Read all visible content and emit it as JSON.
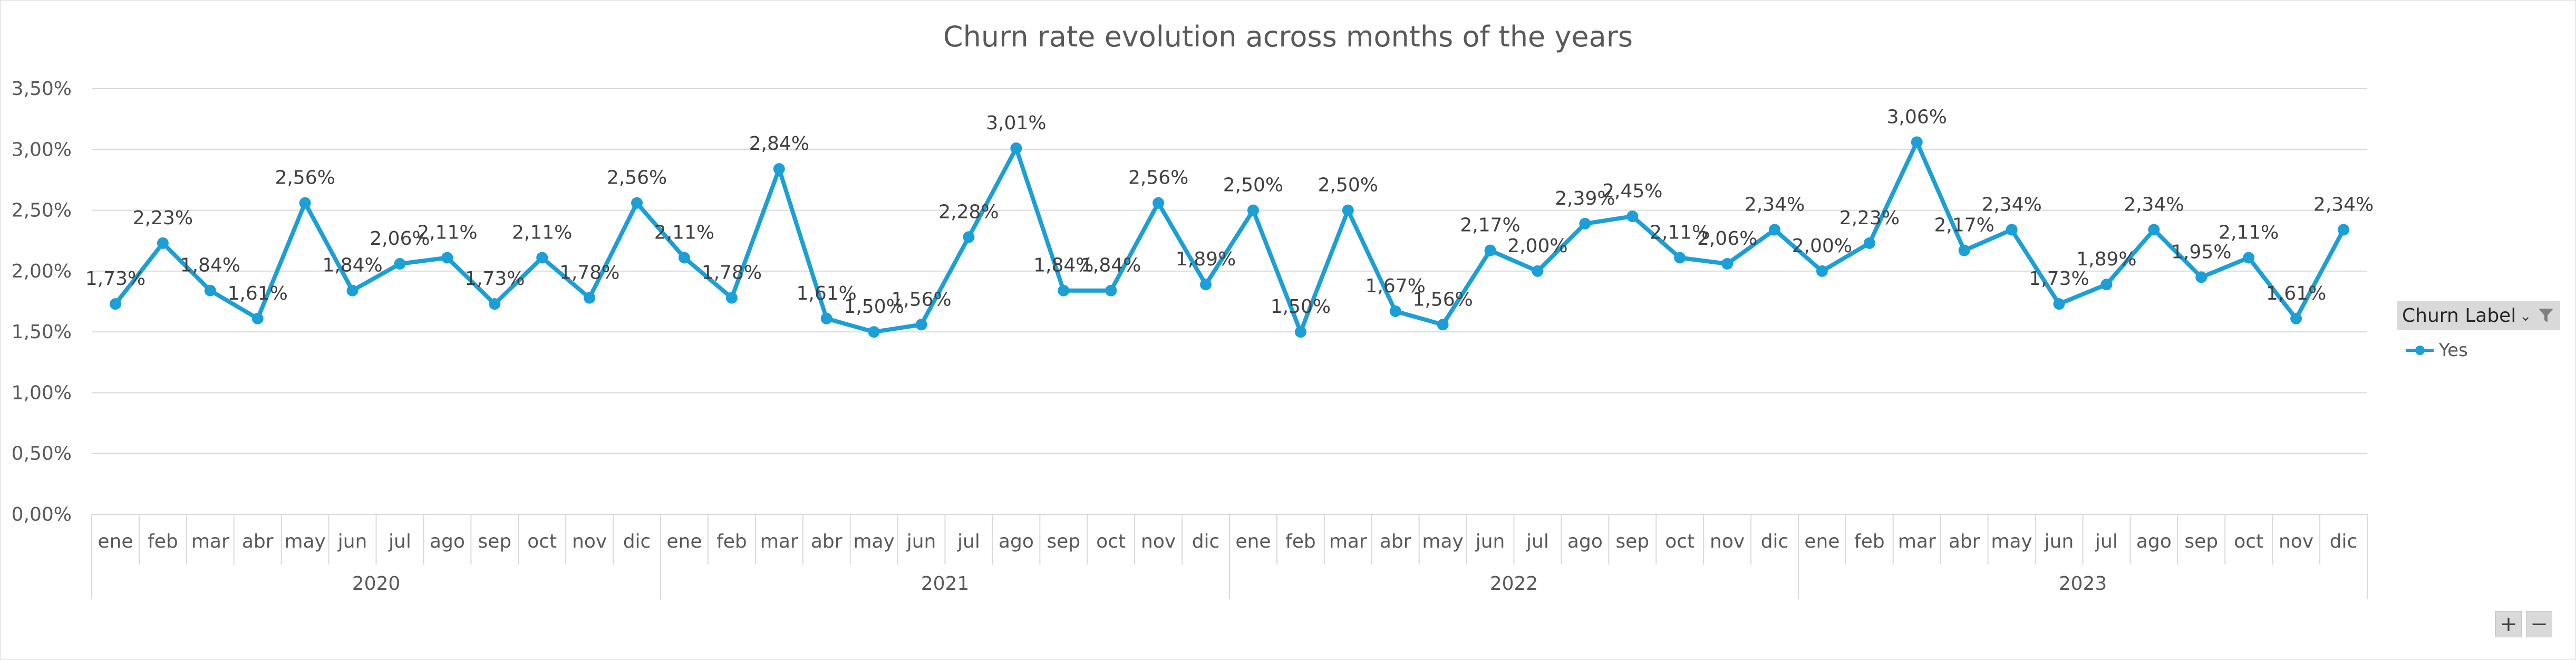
{
  "colors": {
    "series": "#1b9fd6",
    "grid": "#d9d9d9",
    "text": "#595959"
  },
  "legend": {
    "title": "Churn Label",
    "entry": "Yes",
    "sort_icon": "sort-dropdown-icon",
    "filter_icon": "filter-icon"
  },
  "zoom": {
    "plus": "+",
    "minus": "−"
  },
  "chart_data": {
    "type": "line",
    "title": "Churn rate evolution across months of the years",
    "xlabel": "",
    "ylabel": "",
    "ylim": [
      0,
      0.035
    ],
    "y_ticks": [
      "0,00%",
      "0,50%",
      "1,00%",
      "1,50%",
      "2,00%",
      "2,50%",
      "3,00%",
      "3,50%"
    ],
    "grid": true,
    "legend_position": "right",
    "years": [
      "2020",
      "2021",
      "2022",
      "2023"
    ],
    "months": [
      "ene",
      "feb",
      "mar",
      "abr",
      "may",
      "jun",
      "jul",
      "ago",
      "sep",
      "oct",
      "nov",
      "dic"
    ],
    "series": [
      {
        "name": "Yes",
        "values": [
          1.73,
          2.23,
          1.84,
          1.61,
          2.56,
          1.84,
          2.06,
          2.11,
          1.73,
          2.11,
          1.78,
          2.56,
          2.11,
          1.78,
          2.84,
          1.61,
          1.5,
          1.56,
          2.28,
          3.01,
          1.84,
          1.84,
          2.56,
          1.89,
          2.5,
          1.5,
          2.5,
          1.67,
          1.56,
          2.17,
          2.0,
          2.39,
          2.45,
          2.11,
          2.06,
          2.34,
          2.0,
          2.23,
          3.06,
          2.17,
          2.34,
          1.73,
          1.89,
          2.34,
          1.95,
          2.11,
          1.61,
          2.34
        ],
        "labels": [
          "1,73%",
          "2,23%",
          "1,84%",
          "1,61%",
          "2,56%",
          "1,84%",
          "2,06%",
          "2,11%",
          "1,73%",
          "2,11%",
          "1,78%",
          "2,56%",
          "2,11%",
          "1,78%",
          "2,84%",
          "1,61%",
          "1,50%",
          "1,56%",
          "2,28%",
          "3,01%",
          "1,84%",
          "1,84%",
          "2,56%",
          "1,89%",
          "2,50%",
          "1,50%",
          "2,50%",
          "1,67%",
          "1,56%",
          "2,17%",
          "2,00%",
          "2,39%",
          "2,45%",
          "2,11%",
          "2,06%",
          "2,34%",
          "2,00%",
          "2,23%",
          "3,06%",
          "2,17%",
          "2,34%",
          "1,73%",
          "1,89%",
          "2,34%",
          "1,95%",
          "2,11%",
          "1,61%",
          "2,34%"
        ]
      }
    ]
  }
}
